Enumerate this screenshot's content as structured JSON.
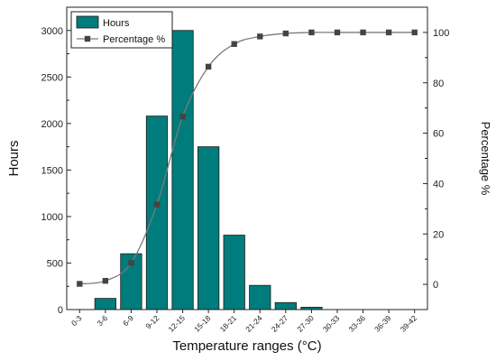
{
  "chart_data": {
    "type": "bar",
    "categories": [
      "0-3",
      "3-6",
      "6-9",
      "9-12",
      "12-15",
      "15-18",
      "18-21",
      "21-24",
      "24-27",
      "27-30",
      "30-33",
      "33-36",
      "36-39",
      "39-42"
    ],
    "series": [
      {
        "name": "Hours",
        "type": "bar",
        "axis": "left",
        "color": "#007c7c",
        "values": [
          0,
          120,
          600,
          2080,
          3000,
          1750,
          800,
          260,
          75,
          25,
          0,
          0,
          0,
          0
        ]
      },
      {
        "name": "Percentage %",
        "type": "line",
        "axis": "right",
        "color": "#444444",
        "marker": "square",
        "values": [
          0.2,
          1.4,
          8.5,
          31.7,
          66.6,
          86.4,
          95.4,
          98.4,
          99.6,
          100,
          100,
          100,
          100,
          100
        ]
      }
    ],
    "xlabel": "Temperature ranges (°C)",
    "ylabel_left": "Hours",
    "ylabel_right": "Percentage %",
    "ylim_left": [
      0,
      3250
    ],
    "yticks_left": [
      0,
      500,
      1000,
      1500,
      2000,
      2500,
      3000
    ],
    "ylim_right": [
      -10,
      110
    ],
    "yticks_right": [
      0,
      20,
      40,
      60,
      80,
      100
    ],
    "grid": false,
    "legend": "top-left",
    "legend_labels": [
      "Hours",
      "Percentage %"
    ]
  }
}
